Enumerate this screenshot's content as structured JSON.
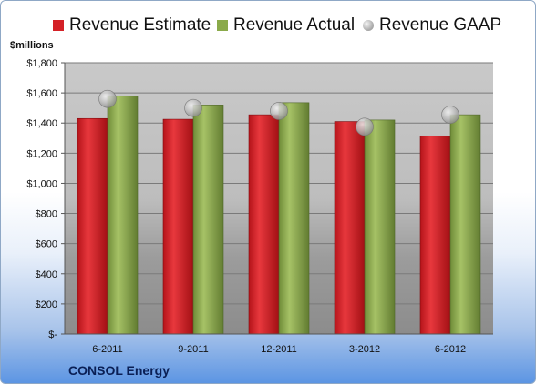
{
  "chart_data": {
    "type": "bar",
    "unit_label": "$millions",
    "company": "CONSOL Energy",
    "categories": [
      "6-2011",
      "9-2011",
      "12-2011",
      "3-2012",
      "6-2012"
    ],
    "series": [
      {
        "name": "Revenue Estimate",
        "kind": "bar",
        "color": "#d42127",
        "values": [
          1430,
          1425,
          1455,
          1410,
          1315
        ]
      },
      {
        "name": "Revenue Actual",
        "kind": "bar",
        "color": "#8aaa4a",
        "values": [
          1580,
          1520,
          1535,
          1420,
          1455
        ]
      },
      {
        "name": "Revenue GAAP",
        "kind": "marker",
        "color": "#b0b0b0",
        "values": [
          1560,
          1500,
          1480,
          1375,
          1455
        ]
      }
    ],
    "ylim": [
      0,
      1800
    ],
    "yticks": [
      {
        "value": 0,
        "label": "$-"
      },
      {
        "value": 200,
        "label": "$200"
      },
      {
        "value": 400,
        "label": "$400"
      },
      {
        "value": 600,
        "label": "$600"
      },
      {
        "value": 800,
        "label": "$800"
      },
      {
        "value": 1000,
        "label": "$1,000"
      },
      {
        "value": 1200,
        "label": "$1,200"
      },
      {
        "value": 1400,
        "label": "$1,400"
      },
      {
        "value": 1600,
        "label": "$1,600"
      },
      {
        "value": 1800,
        "label": "$1,800"
      }
    ],
    "grid": true,
    "legend_position": "top"
  }
}
